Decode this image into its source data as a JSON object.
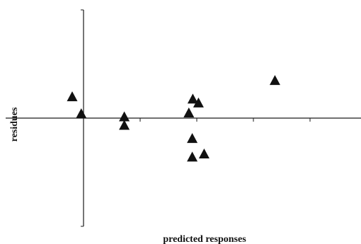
{
  "chart_data": {
    "type": "scatter",
    "title": "",
    "xlabel": "predicted responses",
    "ylabel": "residues",
    "grid": false,
    "legend": "none",
    "marker": "filled-triangle",
    "marker_color": "#111111",
    "axis_color": "#1a1a1a",
    "xlim": [
      -1,
      4.9
    ],
    "ylim": [
      -1.4,
      1.4
    ],
    "x_ticks": [
      0,
      1,
      2,
      3,
      4
    ],
    "y_ticks": [
      -1.4,
      1.4
    ],
    "points": [
      {
        "x": -0.2,
        "y": 0.27
      },
      {
        "x": -0.04,
        "y": 0.05
      },
      {
        "x": 0.72,
        "y": 0.01
      },
      {
        "x": 0.72,
        "y": -0.1
      },
      {
        "x": 1.86,
        "y": 0.06
      },
      {
        "x": 1.93,
        "y": 0.24
      },
      {
        "x": 2.03,
        "y": 0.19
      },
      {
        "x": 1.92,
        "y": -0.27
      },
      {
        "x": 1.92,
        "y": -0.51
      },
      {
        "x": 2.13,
        "y": -0.47
      },
      {
        "x": 3.38,
        "y": 0.48
      }
    ]
  }
}
